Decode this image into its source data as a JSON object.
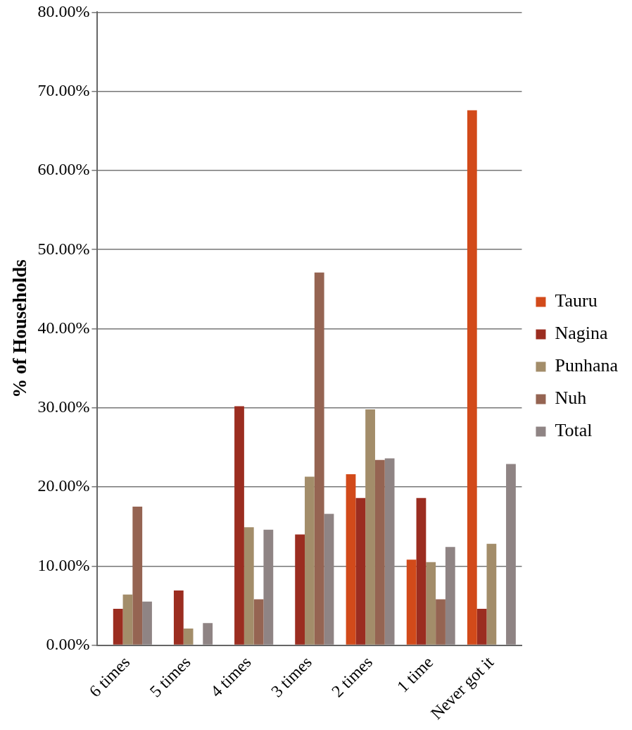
{
  "chart_data": {
    "type": "bar",
    "ylabel": "% of Households",
    "categories": [
      "6 times",
      "5 times",
      "4 times",
      "3 times",
      "2 times",
      "1 time",
      "Never got it"
    ],
    "series": [
      {
        "name": "Tauru",
        "color": "#d24a1a",
        "values": [
          null,
          null,
          null,
          null,
          21.6,
          10.8,
          67.6
        ]
      },
      {
        "name": "Nagina",
        "color": "#9b2d20",
        "values": [
          4.6,
          6.9,
          30.2,
          14.0,
          18.6,
          18.6,
          4.6
        ]
      },
      {
        "name": "Punhana",
        "color": "#a38d6a",
        "values": [
          6.4,
          2.1,
          14.9,
          21.3,
          29.8,
          10.5,
          12.8
        ]
      },
      {
        "name": "Nuh",
        "color": "#956452",
        "values": [
          17.5,
          null,
          5.8,
          47.1,
          23.4,
          5.8,
          null
        ]
      },
      {
        "name": "Total",
        "color": "#8f8484",
        "values": [
          5.5,
          2.8,
          14.6,
          16.6,
          23.6,
          12.4,
          22.9
        ]
      }
    ],
    "ylim": [
      0,
      80
    ],
    "yticks": [
      {
        "value": 0,
        "label": "0.00%"
      },
      {
        "value": 10,
        "label": "10.00%"
      },
      {
        "value": 20,
        "label": "20.00%"
      },
      {
        "value": 30,
        "label": "30.00%"
      },
      {
        "value": 40,
        "label": "40.00%"
      },
      {
        "value": 50,
        "label": "50.00%"
      },
      {
        "value": 60,
        "label": "60.00%"
      },
      {
        "value": 70,
        "label": "70.00%"
      },
      {
        "value": 80,
        "label": "80.00%"
      }
    ],
    "grid": "y",
    "legend": "right"
  }
}
